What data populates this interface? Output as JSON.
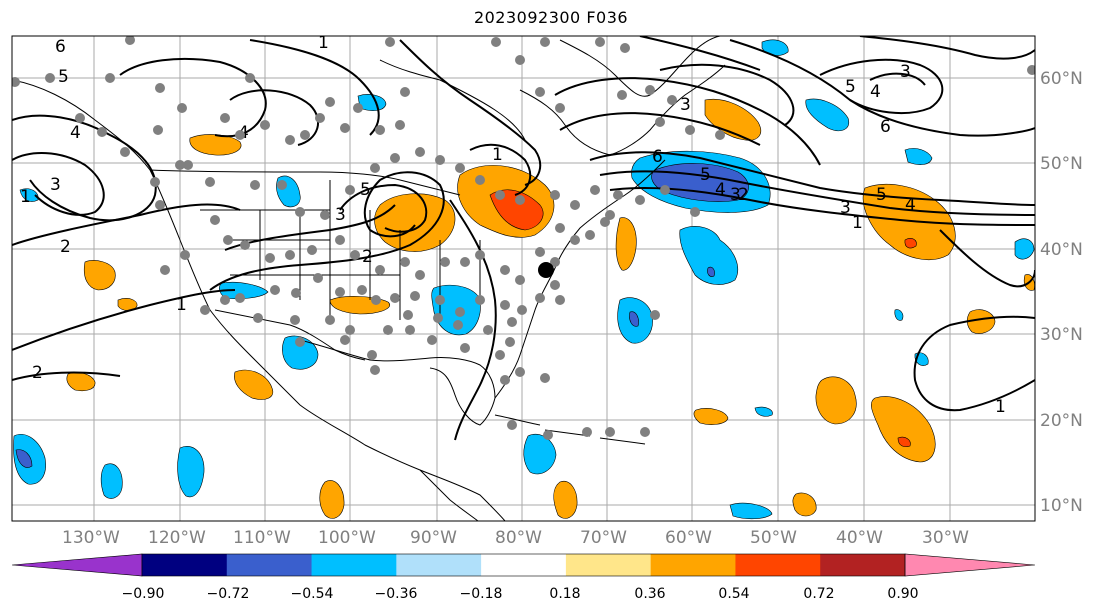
{
  "title": "2023092300 F036",
  "latitude_labels": [
    "60°N",
    "50°N",
    "40°N",
    "30°N",
    "20°N",
    "10°N"
  ],
  "longitude_labels": [
    "130°W",
    "120°W",
    "110°W",
    "100°W",
    "90°W",
    "80°W",
    "70°W",
    "60°W",
    "50°W",
    "40°W",
    "30°W"
  ],
  "contour_labels": [
    "6",
    "5",
    "4",
    "3",
    "2",
    "2",
    "1",
    "1",
    "4",
    "5",
    "3",
    "2",
    "1",
    "3",
    "6",
    "5",
    "4",
    "3",
    "5",
    "4",
    "3",
    "6",
    "2",
    "1",
    "3",
    "5",
    "4",
    "1",
    "1",
    "2",
    "4",
    "5",
    "3",
    "2",
    "1"
  ],
  "colorbar": {
    "ticks": [
      "−0.90",
      "−0.72",
      "−0.54",
      "−0.36",
      "−0.18",
      "0.18",
      "0.36",
      "0.54",
      "0.72",
      "0.90"
    ],
    "colors": [
      "#9933cc",
      "#000080",
      "#3a5fcd",
      "#00bfff",
      "#b0e0fa",
      "#ffffff",
      "#ffe68a",
      "#ffa500",
      "#ff4500",
      "#b22222",
      "#ff88b0"
    ]
  },
  "colors": {
    "grid": "#aaaaaa",
    "coast": "#000000",
    "station": "#808080",
    "highlight_station": "#000000"
  }
}
